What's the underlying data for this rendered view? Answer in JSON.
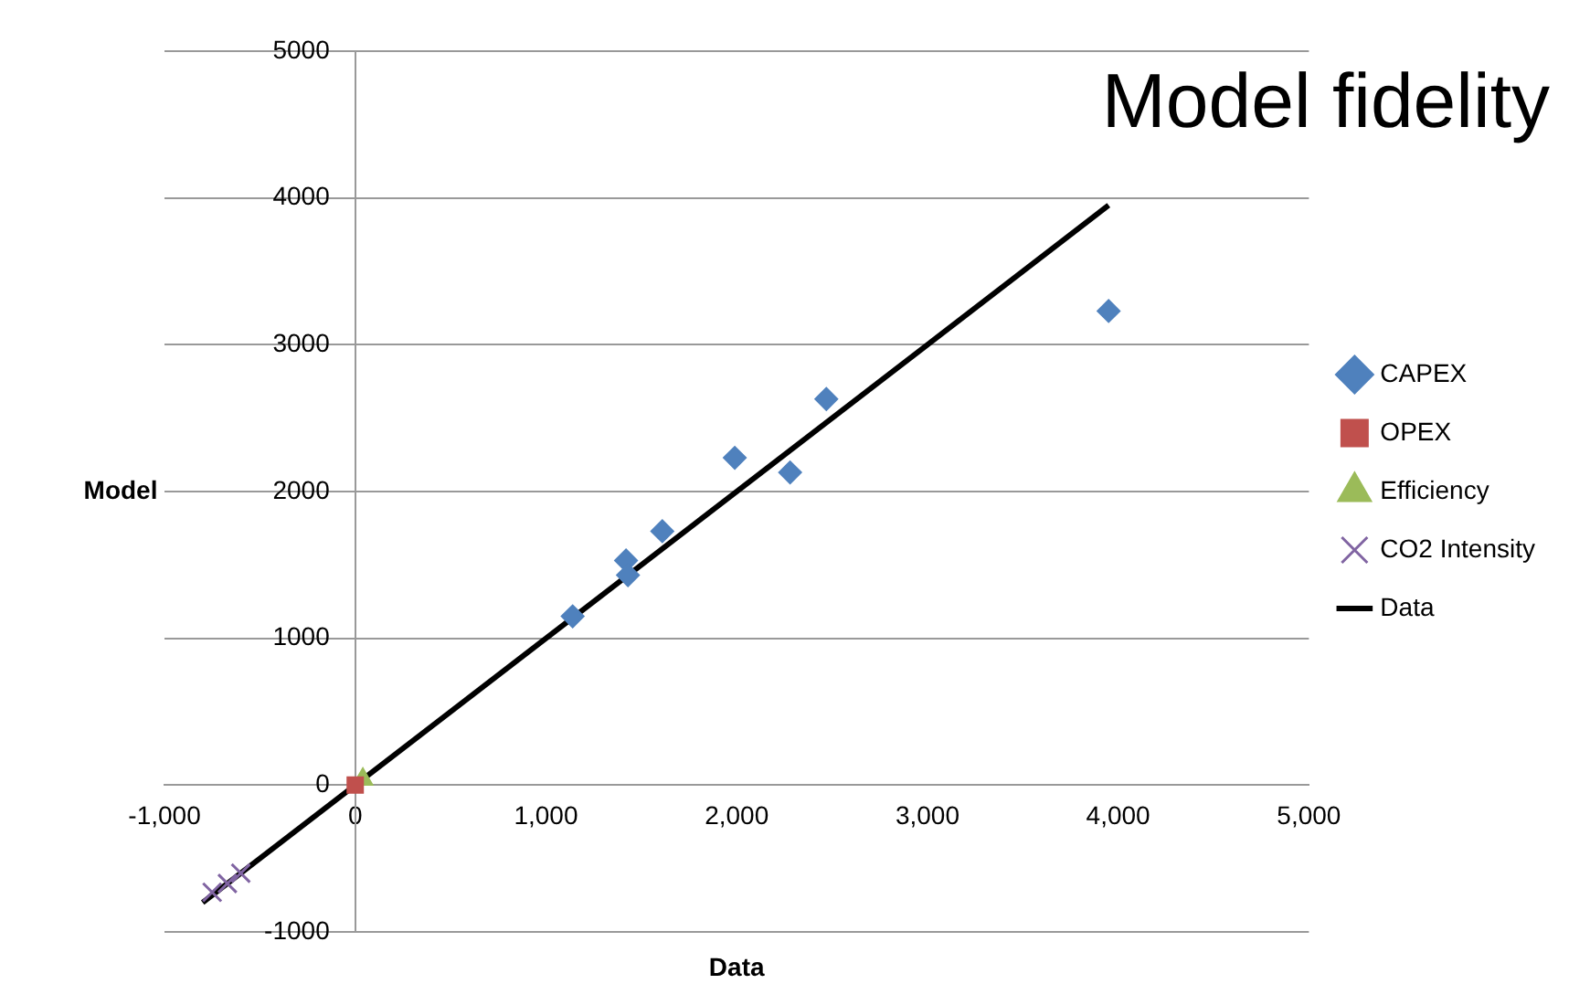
{
  "chart_data": {
    "type": "scatter",
    "title": "Model fidelity",
    "xlabel": "Data",
    "ylabel": "Model",
    "xlim": [
      -1000,
      5000
    ],
    "ylim": [
      -1000,
      5000
    ],
    "xticks": [
      {
        "value": -1000,
        "label": "-1,000"
      },
      0,
      {
        "value": 1000,
        "label": "1,000"
      },
      {
        "value": 2000,
        "label": "2,000"
      },
      {
        "value": 3000,
        "label": "3,000"
      },
      {
        "value": 4000,
        "label": "4,000"
      },
      {
        "value": 5000,
        "label": "5,000"
      }
    ],
    "yticks": [
      -1000,
      0,
      1000,
      2000,
      3000,
      4000,
      5000
    ],
    "grid": "y",
    "legend": "right",
    "series": [
      {
        "name": "CAPEX",
        "marker": "diamond",
        "color": "#4f81bd",
        "x": [
          1140,
          1420,
          1430,
          1610,
          1990,
          2280,
          2470,
          3950
        ],
        "values": [
          1150,
          1530,
          1430,
          1730,
          2230,
          2130,
          2630,
          3230
        ]
      },
      {
        "name": "OPEX",
        "marker": "square",
        "color": "#c0504d",
        "x": [
          0
        ],
        "values": [
          0
        ]
      },
      {
        "name": "Efficiency",
        "marker": "triangle",
        "color": "#9bbb59",
        "x": [
          40
        ],
        "values": [
          40
        ]
      },
      {
        "name": "CO2 Intensity",
        "marker": "cross",
        "color": "#8064a2",
        "x": [
          -750,
          -670,
          -600
        ],
        "values": [
          -730,
          -670,
          -600
        ]
      },
      {
        "name": "Data",
        "type": "line",
        "marker": "none",
        "line_style": "solid",
        "color": "#000000",
        "x": [
          -800,
          3950
        ],
        "values": [
          -800,
          3950
        ]
      }
    ]
  }
}
